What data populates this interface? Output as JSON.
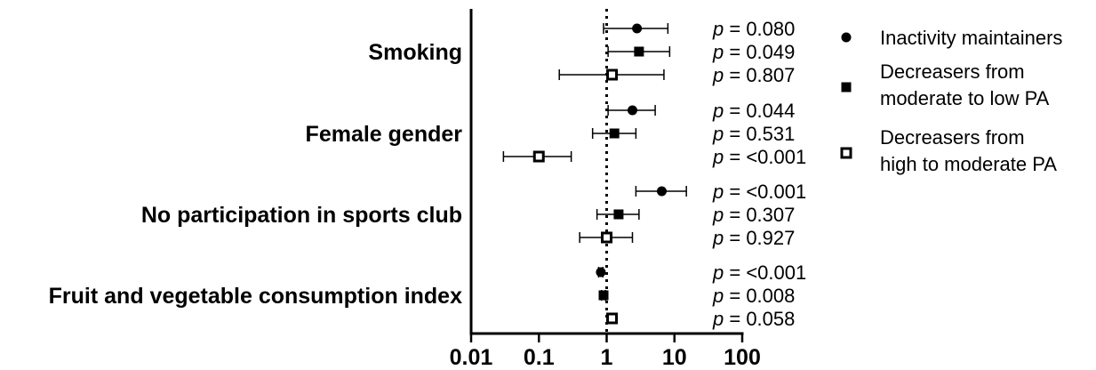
{
  "chart_data": {
    "type": "forest",
    "xscale": "log",
    "xlim": [
      0.01,
      100
    ],
    "reference_line": 1,
    "xtick_labels": [
      "0.01",
      "0.1",
      "1",
      "10",
      "100"
    ],
    "xticks": [
      0.01,
      0.1,
      1,
      10,
      100
    ],
    "categories": [
      "Smoking",
      "Female gender",
      "No participation in sports club",
      "Fruit and vegetable consumption index"
    ],
    "series": [
      {
        "name": "Inactivity maintainers",
        "marker": "filled-circle",
        "values": [
          2.8,
          2.4,
          6.5,
          0.82
        ],
        "ci_low": [
          0.9,
          1.05,
          2.7,
          0.76
        ],
        "ci_high": [
          8.0,
          5.2,
          15.0,
          0.88
        ],
        "p_values": [
          "0.080",
          "0.044",
          "<0.001",
          "<0.001"
        ]
      },
      {
        "name": "Decreasers from moderate to low PA",
        "marker": "filled-square",
        "values": [
          3.0,
          1.3,
          1.5,
          0.9
        ],
        "ci_low": [
          1.05,
          0.62,
          0.72,
          0.84
        ],
        "ci_high": [
          8.5,
          2.7,
          3.0,
          0.96
        ],
        "p_values": [
          "0.049",
          "0.531",
          "0.307",
          "0.008"
        ]
      },
      {
        "name": "Decreasers from high to moderate PA",
        "marker": "open-square",
        "values": [
          1.2,
          0.1,
          1.0,
          1.2
        ],
        "ci_low": [
          0.2,
          0.03,
          0.4,
          1.1
        ],
        "ci_high": [
          7.0,
          0.3,
          2.4,
          1.3
        ],
        "p_values": [
          "0.807",
          "<0.001",
          "0.927",
          "0.058"
        ]
      }
    ],
    "p_label": "p",
    "p_eq": " = "
  },
  "legend": {
    "items": [
      {
        "marker": "filled-circle",
        "lines": [
          "Inactivity maintainers"
        ]
      },
      {
        "marker": "filled-square",
        "lines": [
          "Decreasers from",
          "moderate to low PA"
        ]
      },
      {
        "marker": "open-square",
        "lines": [
          "Decreasers from",
          "high to moderate PA"
        ]
      }
    ]
  }
}
